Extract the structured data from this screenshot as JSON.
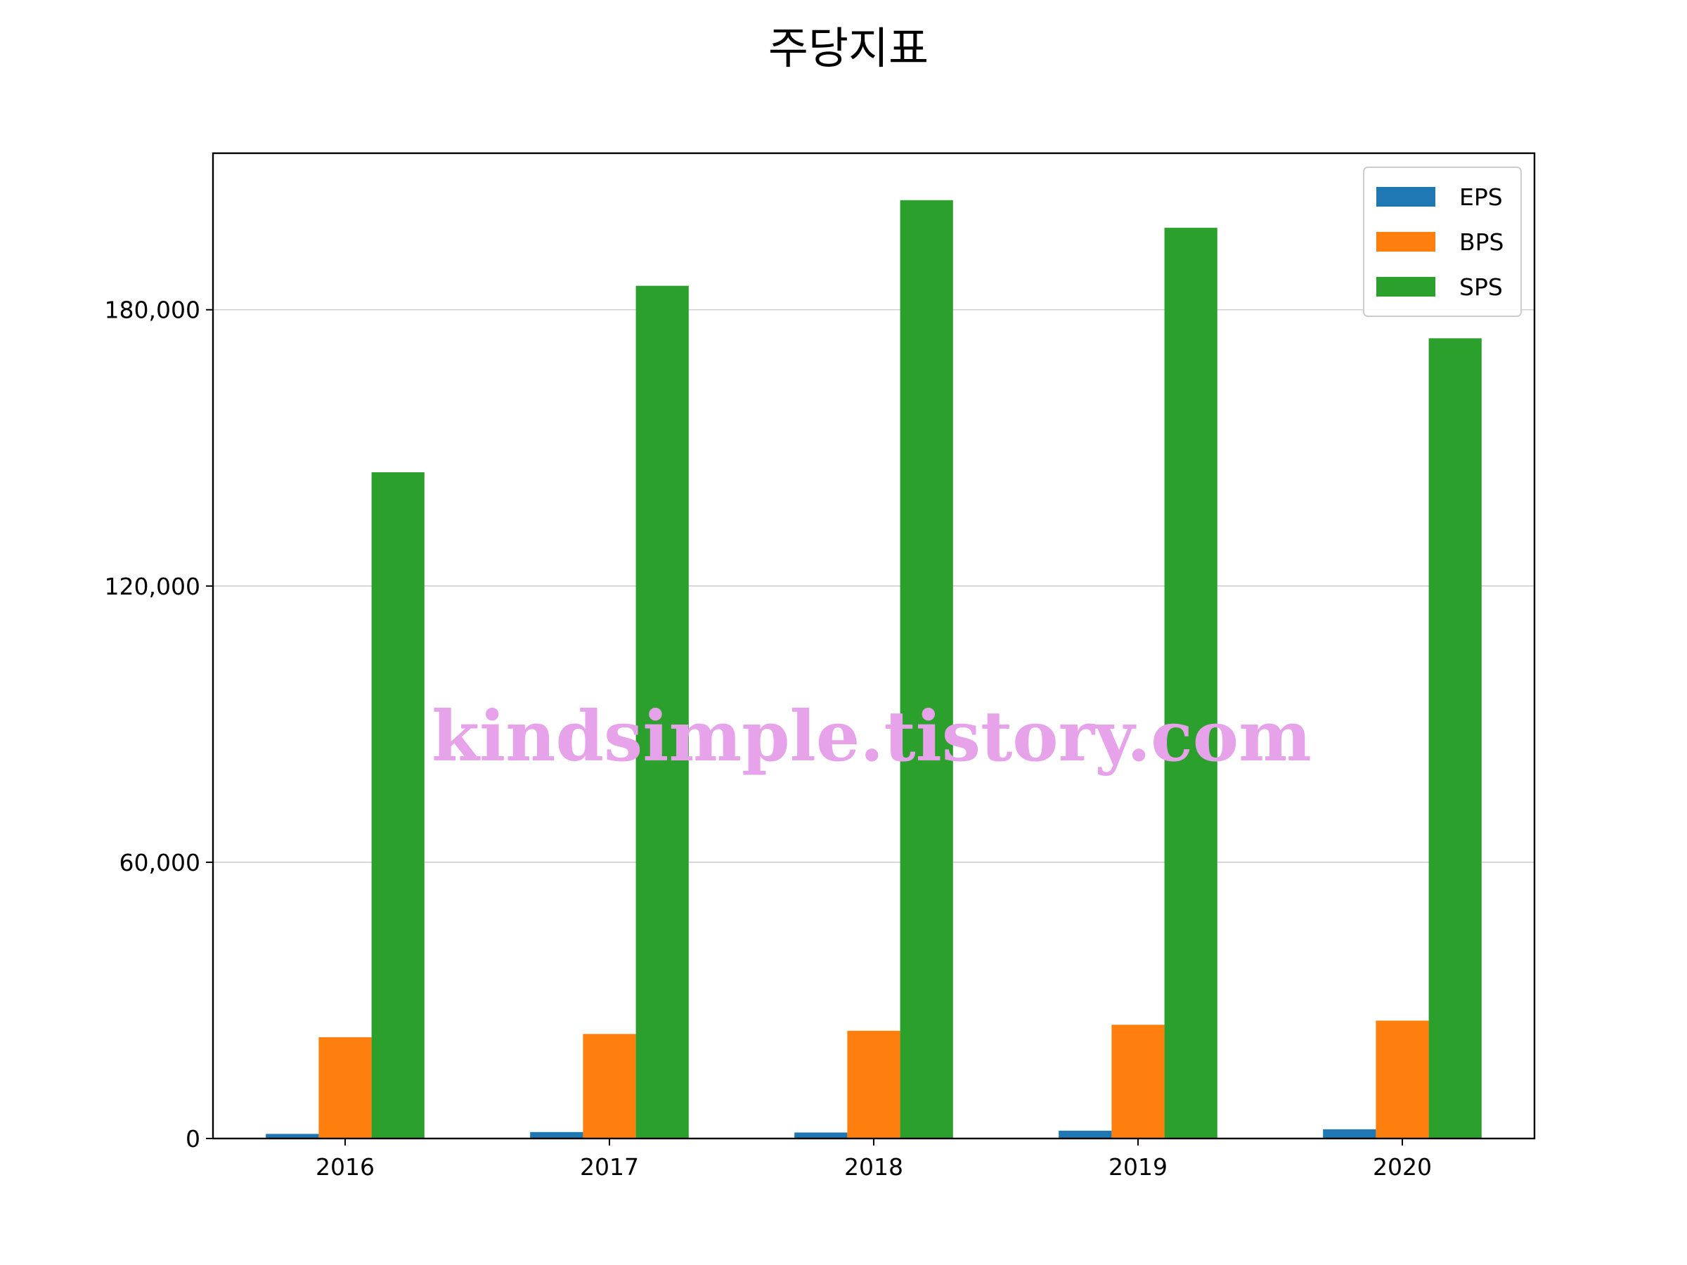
{
  "chart_data": {
    "type": "bar",
    "title": "주당지표",
    "xlabel": "",
    "ylabel": "",
    "categories": [
      "2016",
      "2017",
      "2018",
      "2019",
      "2020"
    ],
    "series": [
      {
        "name": "EPS",
        "color": "#1f77b4",
        "values": [
          1000,
          1400,
          1300,
          1700,
          2000
        ]
      },
      {
        "name": "BPS",
        "color": "#ff7f0e",
        "values": [
          22000,
          22700,
          23400,
          24700,
          25600
        ]
      },
      {
        "name": "SPS",
        "color": "#2ca02c",
        "values": [
          144700,
          185200,
          203800,
          197800,
          173800
        ]
      }
    ],
    "ylim": [
      0,
      214000
    ],
    "yticks": [
      0,
      60000,
      120000,
      180000
    ],
    "ytick_labels": [
      "0",
      "60,000",
      "120,000",
      "180,000"
    ],
    "grid": "y",
    "legend": "top-right",
    "watermark": "kindsimple.tistory.com"
  }
}
